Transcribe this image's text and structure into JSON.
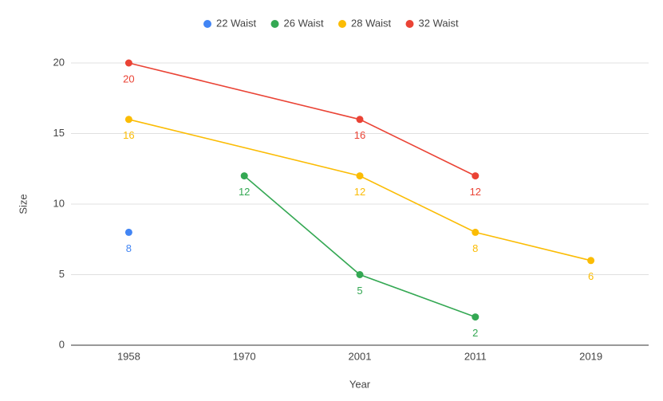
{
  "chart_data": {
    "type": "line",
    "categories": [
      "1958",
      "1970",
      "2001",
      "2011",
      "2019"
    ],
    "x_label": "Year",
    "y_label": "Size",
    "series": [
      {
        "name": "22 Waist",
        "color": "#4285f4",
        "values": [
          8,
          null,
          null,
          null,
          null
        ]
      },
      {
        "name": "26 Waist",
        "color": "#34a853",
        "values": [
          null,
          12,
          5,
          2,
          null
        ]
      },
      {
        "name": "28 Waist",
        "color": "#fbbc04",
        "values": [
          16,
          null,
          12,
          8,
          6
        ]
      },
      {
        "name": "32 Waist",
        "color": "#ea4335",
        "values": [
          20,
          null,
          16,
          12,
          null
        ]
      }
    ],
    "ylim": [
      0,
      20
    ],
    "yticks": [
      0,
      5,
      10,
      15,
      20
    ],
    "grid": true,
    "interpolate_nulls": true,
    "legend": "top"
  }
}
